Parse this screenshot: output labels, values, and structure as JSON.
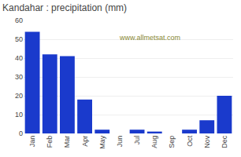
{
  "chart_data": {
    "type": "bar",
    "title": "Kandahar : precipitation (mm)",
    "categories": [
      "Jan",
      "Feb",
      "Mar",
      "Apr",
      "May",
      "Jun",
      "Jul",
      "Aug",
      "Sep",
      "Oct",
      "Nov",
      "Dec"
    ],
    "values": [
      54,
      42,
      41,
      18,
      2,
      0,
      2,
      1,
      0,
      2,
      7,
      20
    ],
    "color": "#1a3acc",
    "ylim": [
      0,
      60
    ],
    "yticks": [
      0,
      10,
      20,
      30,
      40,
      50,
      60
    ],
    "grid": true,
    "annotations": [
      "www.allmetsat.com"
    ]
  }
}
